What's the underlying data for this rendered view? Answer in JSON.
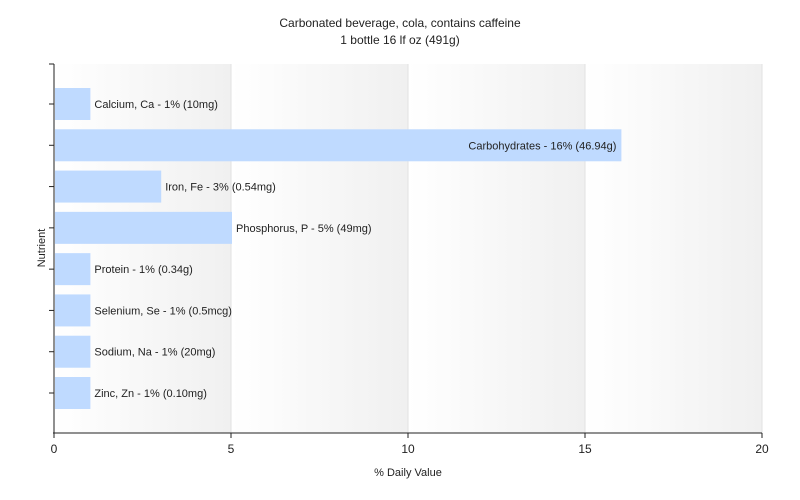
{
  "chart_data": {
    "type": "bar",
    "orientation": "horizontal",
    "title": "Carbonated beverage, cola, contains caffeine",
    "subtitle": "1 bottle 16 lf oz (491g)",
    "xlabel": "% Daily Value",
    "ylabel": "Nutrient",
    "xlim": [
      0,
      20
    ],
    "xticks": [
      "0",
      "5",
      "10",
      "15",
      "20"
    ],
    "grid": true,
    "bar_color": "#bfdaff",
    "categories": [
      "Calcium, Ca",
      "Carbohydrates",
      "Iron, Fe",
      "Phosphorus, P",
      "Protein",
      "Selenium, Se",
      "Sodium, Na",
      "Zinc, Zn"
    ],
    "values": [
      1,
      16,
      3,
      5,
      1,
      1,
      1,
      1
    ],
    "labels": [
      "Calcium, Ca - 1% (10mg)",
      "Carbohydrates - 16% (46.94g)",
      "Iron, Fe - 3% (0.54mg)",
      "Phosphorus, P - 5% (49mg)",
      "Protein - 1% (0.34g)",
      "Selenium, Se - 1% (0.5mcg)",
      "Sodium, Na - 1% (20mg)",
      "Zinc, Zn - 1% (0.10mg)"
    ]
  }
}
